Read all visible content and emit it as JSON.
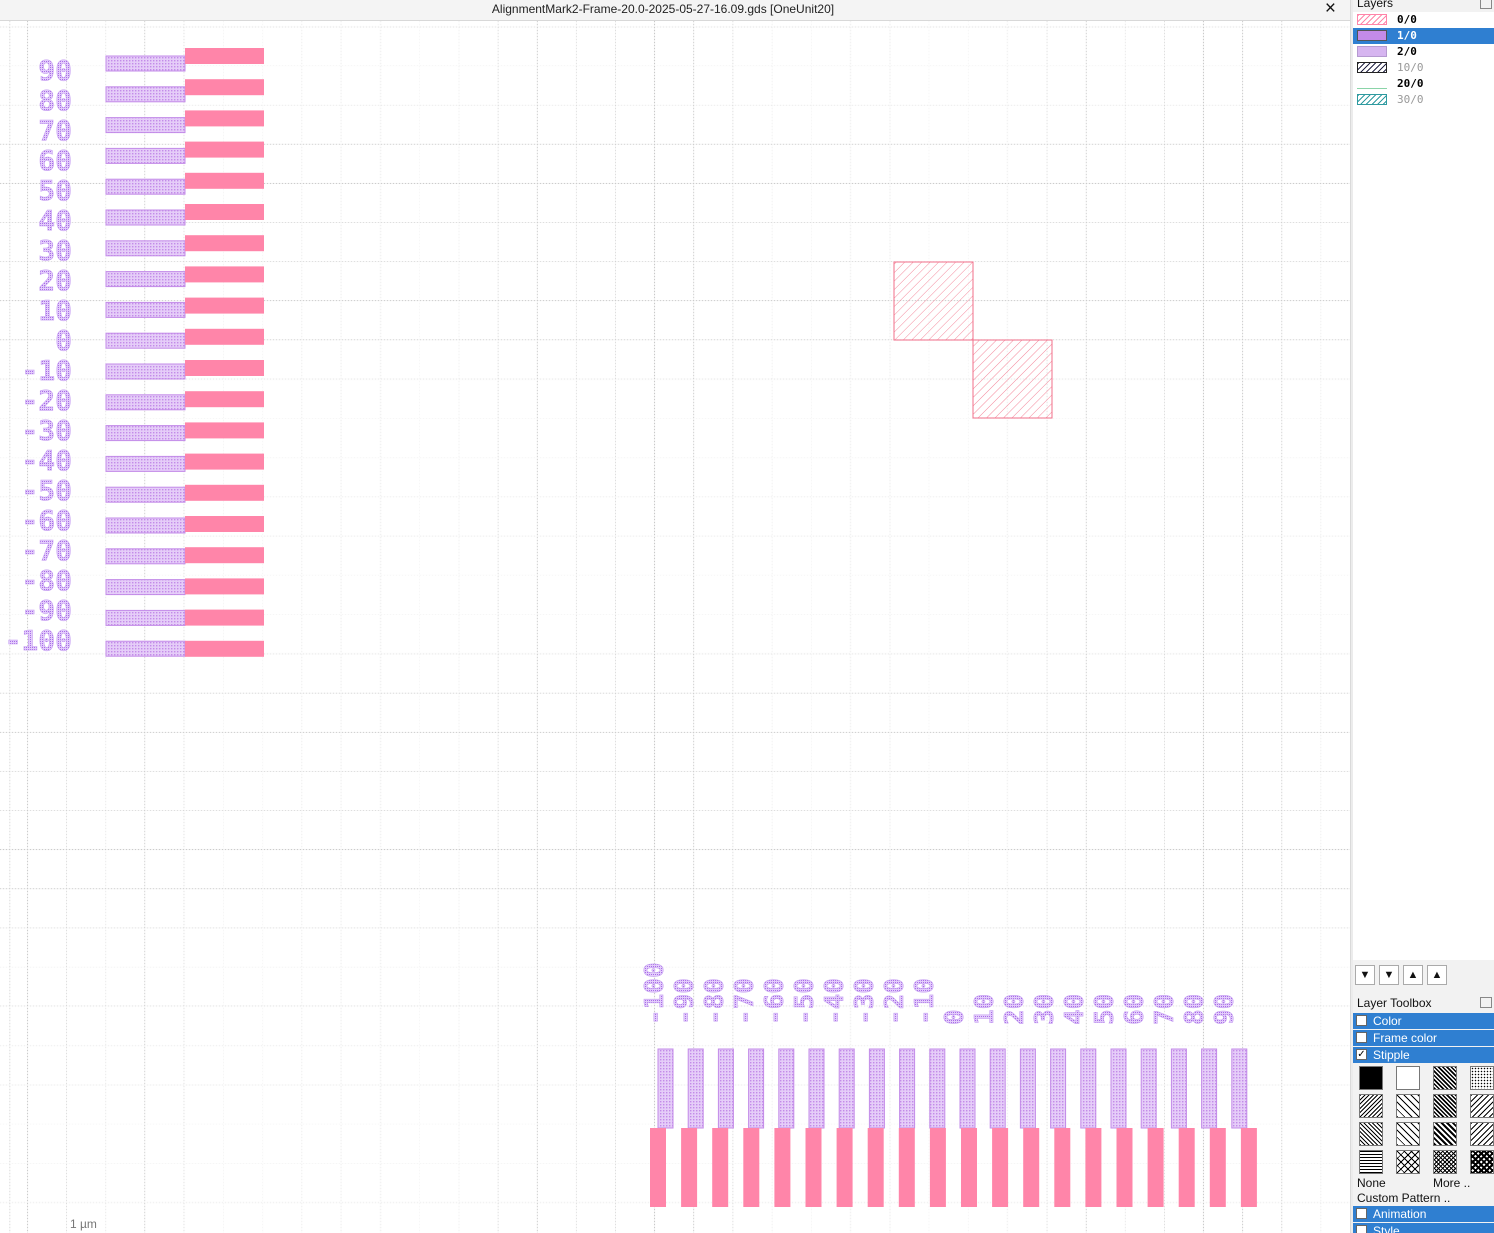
{
  "window": {
    "title": "AlignmentMark2-Frame-20.0-2025-05-27-16.09.gds [OneUnit20]",
    "close_icon": "×"
  },
  "canvas": {
    "scale_bar": "1  µm",
    "grid_spacing_um": 1,
    "left_vernier": {
      "labels": [
        "90",
        "80",
        "70",
        "60",
        "50",
        "40",
        "30",
        "20",
        "10",
        "0",
        "-10",
        "-20",
        "-30",
        "-40",
        "-50",
        "-60",
        "-70",
        "-80",
        "-90",
        "-100"
      ],
      "label_color": "#c6a0f2",
      "layer_1_color": "#c38be8",
      "layer_0_color": "#ff85a9"
    },
    "bottom_vernier": {
      "labels": [
        "-100",
        "-90",
        "-80",
        "-70",
        "-60",
        "-50",
        "-40",
        "-30",
        "-20",
        "-10",
        "0",
        "10",
        "20",
        "30",
        "40",
        "50",
        "60",
        "70",
        "80",
        "90"
      ]
    },
    "alignment_squares_color": "#f26f8a"
  },
  "layers_panel": {
    "header": "Layers",
    "layers": [
      {
        "name": "0/0",
        "color": "#ff85a9",
        "hatch": "diag",
        "visible": true,
        "selected": false
      },
      {
        "name": "1/0",
        "color": "#c38be8",
        "hatch": "solid",
        "visible": true,
        "selected": true
      },
      {
        "name": "2/0",
        "color": "#d6b5f0",
        "hatch": "dots",
        "visible": true,
        "selected": false
      },
      {
        "name": "10/0",
        "color": "#222244",
        "hatch": "diag",
        "visible": false,
        "selected": false
      },
      {
        "name": "20/0",
        "color": "#8ad4a8",
        "hatch": "none",
        "visible": true,
        "selected": false
      },
      {
        "name": "30/0",
        "color": "#2e9aa0",
        "hatch": "diag",
        "visible": false,
        "selected": false
      }
    ],
    "nav_buttons": [
      "move-to-bottom-icon",
      "move-down-icon",
      "move-up-icon",
      "move-to-top-icon"
    ]
  },
  "layer_toolbox": {
    "header": "Layer Toolbox",
    "sections": {
      "color": "Color",
      "frame_color": "Frame color",
      "stipple": "Stipple",
      "animation": "Animation",
      "style": "Style"
    },
    "stipple_checked": true,
    "none_label": "None",
    "more_label": "More ..",
    "custom_pattern_label": "Custom Pattern .."
  }
}
